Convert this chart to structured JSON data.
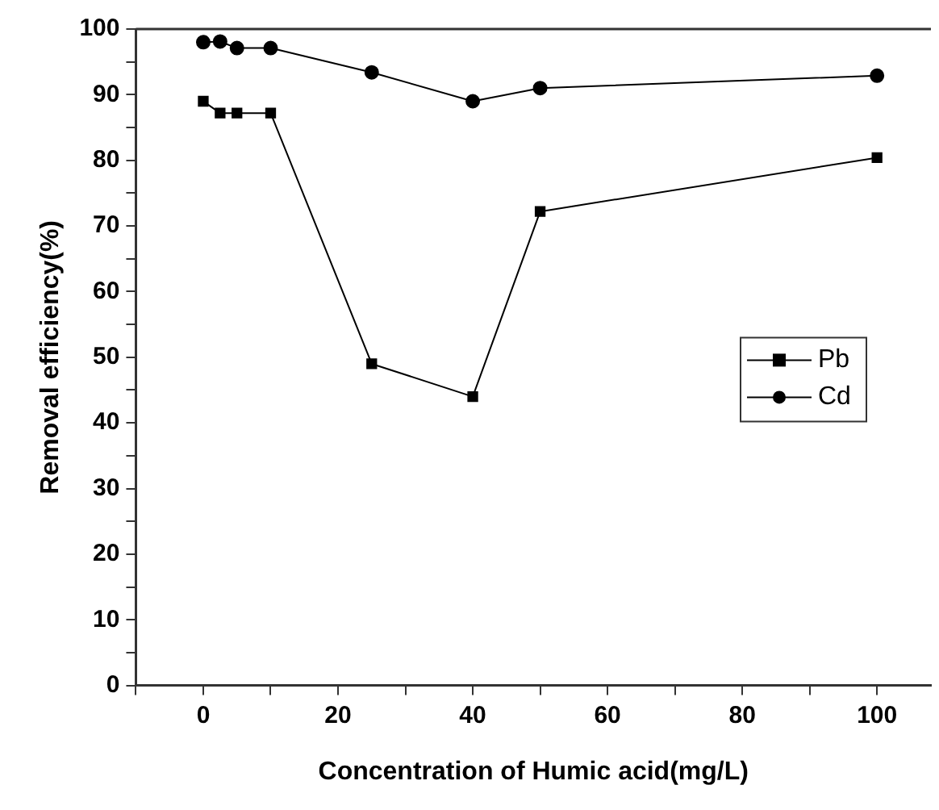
{
  "chart_data": {
    "type": "line",
    "xlabel": "Concentration of Humic acid(mg/L)",
    "ylabel": "Removal efficiency(%)",
    "xlim": [
      -10,
      108
    ],
    "xticks": [
      {
        "value": -10,
        "label": null
      },
      0,
      {
        "value": 10,
        "label": null
      },
      20,
      {
        "value": 30,
        "label": null
      },
      40,
      {
        "value": 50,
        "label": null
      },
      60,
      {
        "value": 70,
        "label": null
      },
      80,
      {
        "value": 90,
        "label": null
      },
      100
    ],
    "ylim": [
      0,
      100
    ],
    "yticks": [
      0,
      {
        "value": 5,
        "label": null
      },
      10,
      {
        "value": 15,
        "label": null
      },
      20,
      {
        "value": 25,
        "label": null
      },
      30,
      {
        "value": 35,
        "label": null
      },
      40,
      {
        "value": 45,
        "label": null
      },
      50,
      {
        "value": 55,
        "label": null
      },
      60,
      {
        "value": 65,
        "label": null
      },
      70,
      {
        "value": 75,
        "label": null
      },
      80,
      {
        "value": 85,
        "label": null
      },
      90,
      {
        "value": 95,
        "label": null
      },
      100
    ],
    "x": [
      0,
      2.5,
      5,
      10,
      25,
      40,
      50,
      100
    ],
    "series": [
      {
        "name": "Pb",
        "color": "#000000",
        "marker": "square",
        "values": [
          89,
          87.2,
          87.2,
          87.2,
          49,
          44,
          72.2,
          80.4
        ]
      },
      {
        "name": "Cd",
        "color": "#000000",
        "marker": "circle",
        "values": [
          98,
          98.1,
          97.1,
          97.1,
          93.4,
          89,
          91,
          92.9
        ]
      }
    ],
    "legend": "right",
    "grid": false,
    "line_style": "solid"
  }
}
